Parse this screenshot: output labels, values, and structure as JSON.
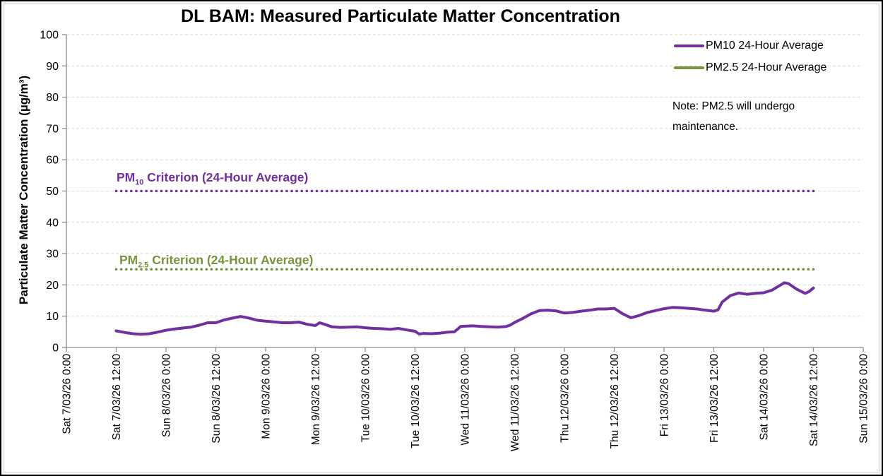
{
  "title": "DL BAM: Measured Particulate Matter Concentration",
  "legend": {
    "items": [
      {
        "label": "PM10 24-Hour Average",
        "color": "#7030a0"
      },
      {
        "label": "PM2.5 24-Hour Average",
        "color": "#77933c"
      }
    ]
  },
  "note": {
    "line1": "Note: PM2.5 will undergo",
    "line2": "maintenance."
  },
  "criteria": {
    "pm10": {
      "prefix": "PM",
      "sub": "10",
      "rest": " Criterion (24-Hour Average)",
      "color": "#7030a0",
      "value": 50
    },
    "pm25": {
      "prefix": "PM",
      "sub": "2.5",
      "rest": " Criterion (24-Hour Average)",
      "color": "#77933c",
      "value": 25
    }
  },
  "colors": {
    "pm10_purple": "#7030a0",
    "pm25_olive": "#77933c",
    "gridline": "#d9d9d9",
    "axis": "#8c8c8c",
    "text": "#000000"
  },
  "chart_data": {
    "type": "line",
    "title": "DL BAM: Measured Particulate Matter Concentration",
    "xlabel": "",
    "ylabel": "Particulate Matter Concentration (µg/m³)",
    "ylim": [
      0,
      100
    ],
    "ytick_labels": [
      "0",
      "10",
      "20",
      "30",
      "40",
      "50",
      "60",
      "70",
      "80",
      "90",
      "100"
    ],
    "x_hours_per_tick": 12,
    "x_tick_labels": [
      "Sat 7/03/26 0:00",
      "Sat 7/03/26 12:00",
      "Sun 8/03/26 0:00",
      "Sun 8/03/26 12:00",
      "Mon 9/03/26 0:00",
      "Mon 9/03/26 12:00",
      "Tue 10/03/26 0:00",
      "Tue 10/03/26 12:00",
      "Wed 11/03/26 0:00",
      "Wed 11/03/26 12:00",
      "Thu 12/03/26 0:00",
      "Thu 12/03/26 12:00",
      "Fri 13/03/26 0:00",
      "Fri 13/03/26 12:00",
      "Sat 14/03/26 0:00",
      "Sat 14/03/26 12:00",
      "Sun 15/03/26 0:00"
    ],
    "grid": true,
    "legend_position": "top-right",
    "series": [
      {
        "name": "PM10 24-Hour Average",
        "color": "#7030a0",
        "style": "solid",
        "units": "µg/m³",
        "x_unit": "hours since Sat 7/03/26 0:00",
        "points": [
          [
            12,
            5.3
          ],
          [
            14,
            4.8
          ],
          [
            16,
            4.4
          ],
          [
            18,
            4.2
          ],
          [
            20,
            4.4
          ],
          [
            22,
            4.9
          ],
          [
            24,
            5.5
          ],
          [
            26,
            5.9
          ],
          [
            28,
            6.2
          ],
          [
            30,
            6.5
          ],
          [
            32,
            7.1
          ],
          [
            34,
            7.9
          ],
          [
            36,
            7.9
          ],
          [
            38,
            8.8
          ],
          [
            40,
            9.4
          ],
          [
            42,
            9.9
          ],
          [
            44,
            9.4
          ],
          [
            46,
            8.7
          ],
          [
            48,
            8.4
          ],
          [
            50,
            8.2
          ],
          [
            52,
            7.9
          ],
          [
            54,
            7.9
          ],
          [
            56,
            8.1
          ],
          [
            58,
            7.4
          ],
          [
            60,
            7.0
          ],
          [
            61,
            7.9
          ],
          [
            62,
            7.5
          ],
          [
            64,
            6.6
          ],
          [
            66,
            6.4
          ],
          [
            68,
            6.5
          ],
          [
            70,
            6.6
          ],
          [
            72,
            6.3
          ],
          [
            74,
            6.1
          ],
          [
            76,
            6.0
          ],
          [
            78,
            5.8
          ],
          [
            80,
            6.1
          ],
          [
            82,
            5.6
          ],
          [
            84,
            5.2
          ],
          [
            85,
            4.3
          ],
          [
            86,
            4.5
          ],
          [
            88,
            4.4
          ],
          [
            90,
            4.6
          ],
          [
            92,
            4.9
          ],
          [
            93.5,
            5.0
          ],
          [
            95,
            6.7
          ],
          [
            96,
            6.8
          ],
          [
            98,
            6.9
          ],
          [
            100,
            6.7
          ],
          [
            102,
            6.6
          ],
          [
            104,
            6.5
          ],
          [
            106,
            6.7
          ],
          [
            107,
            7.2
          ],
          [
            108,
            8.0
          ],
          [
            110,
            9.3
          ],
          [
            112,
            10.8
          ],
          [
            114,
            11.8
          ],
          [
            116,
            11.9
          ],
          [
            118,
            11.7
          ],
          [
            120,
            11.0
          ],
          [
            122,
            11.2
          ],
          [
            124,
            11.6
          ],
          [
            126,
            11.9
          ],
          [
            128,
            12.3
          ],
          [
            130,
            12.3
          ],
          [
            132,
            12.5
          ],
          [
            134,
            10.8
          ],
          [
            136,
            9.5
          ],
          [
            138,
            10.2
          ],
          [
            140,
            11.2
          ],
          [
            142,
            11.8
          ],
          [
            144,
            12.4
          ],
          [
            146,
            12.8
          ],
          [
            148,
            12.7
          ],
          [
            150,
            12.5
          ],
          [
            152,
            12.3
          ],
          [
            154,
            11.9
          ],
          [
            156,
            11.6
          ],
          [
            157,
            12.0
          ],
          [
            158,
            14.5
          ],
          [
            160,
            16.6
          ],
          [
            162,
            17.4
          ],
          [
            164,
            17.0
          ],
          [
            166,
            17.3
          ],
          [
            168,
            17.5
          ],
          [
            170,
            18.3
          ],
          [
            172,
            19.9
          ],
          [
            173,
            20.7
          ],
          [
            174,
            20.4
          ],
          [
            176,
            18.6
          ],
          [
            178,
            17.3
          ],
          [
            179,
            17.9
          ],
          [
            180,
            19.0
          ]
        ]
      },
      {
        "name": "PM2.5 24-Hour Average",
        "color": "#77933c",
        "style": "solid",
        "units": "µg/m³",
        "points": []
      },
      {
        "name": "PM10 Criterion (24-Hour Average)",
        "color": "#7030a0",
        "style": "dotted",
        "points": [
          [
            12,
            50
          ],
          [
            180.5,
            50
          ]
        ]
      },
      {
        "name": "PM2.5 Criterion (24-Hour Average)",
        "color": "#77933c",
        "style": "dotted",
        "points": [
          [
            12,
            25
          ],
          [
            180.5,
            25
          ]
        ]
      }
    ]
  }
}
